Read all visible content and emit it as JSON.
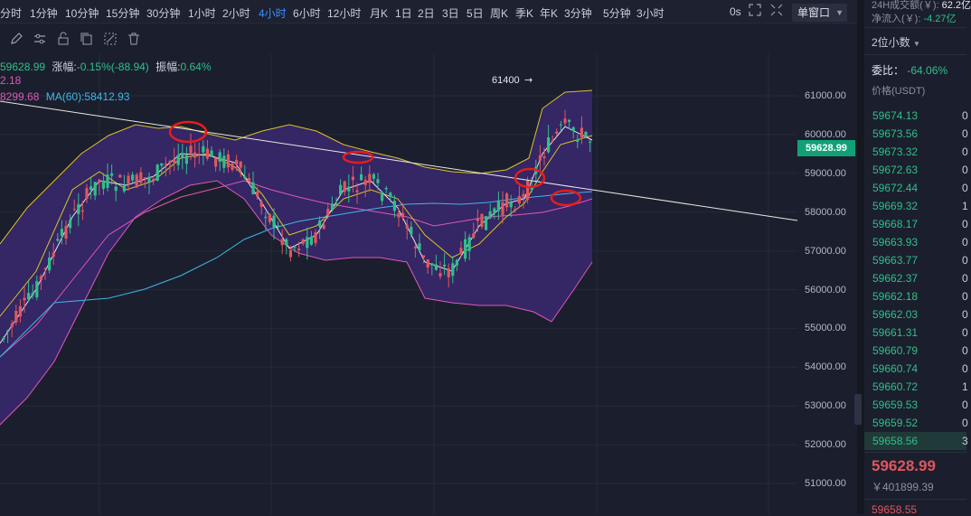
{
  "toolbar": {
    "timeframes": [
      "分时",
      "1分钟",
      "10分钟",
      "15分钟",
      "30分钟",
      "1小时",
      "2小时",
      "4小时",
      "6小时",
      "12小时",
      "月K",
      "1日",
      "2日",
      "3日",
      "5日",
      "周K",
      "季K",
      "年K",
      "3分钟",
      "5分钟",
      "3小时"
    ],
    "active_timeframe": "4小时",
    "zero_seconds": "0s",
    "window_mode": "单窗口"
  },
  "legend": {
    "close": "59628.99",
    "change_label": "涨幅:",
    "change_value": "-0.15%(-88.94)",
    "amplitude_label": "振幅:",
    "amplitude_value": "0.64%",
    "ma_line2": "2.18",
    "ma_line3a": "8299.68",
    "ma60": "MA(60):58412.93"
  },
  "chart": {
    "peak_annotation": "61400",
    "current_price": "59628.99",
    "price_ticks": [
      "61000.00",
      "60000.00",
      "59000.00",
      "58000.00",
      "57000.00",
      "56000.00",
      "55000.00",
      "54000.00",
      "53000.00",
      "52000.00",
      "51000.00"
    ],
    "colors": {
      "up": "#e0565e",
      "down": "#2fbf8a",
      "band_fill": "#3a2870",
      "band_line": "#e056b9",
      "ma_white": "#e6e6ee",
      "ma_yellow": "#d8c32c",
      "ma_cyan": "#3fb7e8",
      "trendline": "#e8e8e0",
      "ellipse": "#e81c1c"
    }
  },
  "side_panel": {
    "volume24h_label": "24H成交额(￥):",
    "volume24h_value": "62.2亿",
    "netflow_label": "净流入(￥):",
    "netflow_value": "-4.27亿",
    "decimal_select": "2位小数",
    "ratio_label": "委比：",
    "ratio_value": "-64.06%",
    "price_header": "价格(USDT)",
    "orderbook": [
      {
        "price": "59674.13",
        "qty": "0"
      },
      {
        "price": "59673.56",
        "qty": "0"
      },
      {
        "price": "59673.32",
        "qty": "0"
      },
      {
        "price": "59672.63",
        "qty": "0"
      },
      {
        "price": "59672.44",
        "qty": "0"
      },
      {
        "price": "59669.32",
        "qty": "1"
      },
      {
        "price": "59668.17",
        "qty": "0"
      },
      {
        "price": "59663.93",
        "qty": "0"
      },
      {
        "price": "59663.77",
        "qty": "0"
      },
      {
        "price": "59662.37",
        "qty": "0"
      },
      {
        "price": "59662.18",
        "qty": "0"
      },
      {
        "price": "59662.03",
        "qty": "0"
      },
      {
        "price": "59661.31",
        "qty": "0"
      },
      {
        "price": "59660.79",
        "qty": "0"
      },
      {
        "price": "59660.74",
        "qty": "0"
      },
      {
        "price": "59660.72",
        "qty": "1"
      },
      {
        "price": "59659.53",
        "qty": "0"
      },
      {
        "price": "59659.52",
        "qty": "0"
      },
      {
        "price": "59658.56",
        "qty": "3"
      }
    ],
    "last_price": "59628.99",
    "last_price_cny": "￥401899.39",
    "next_bid": "59658.55"
  }
}
